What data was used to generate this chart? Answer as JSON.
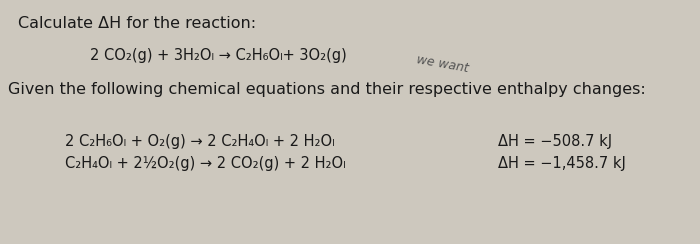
{
  "background_color": "#cdc8be",
  "text_color": "#1a1a1a",
  "title_text": "Calculate ΔH for the reaction:",
  "reaction_line": "2 CO₂(g) + 3H₂Oₗ → C₂H₆Oₗ+ 3O₂(g)",
  "we_want_text": "we want",
  "given_text": "Given the following chemical equations and their respective enthalpy changes:",
  "eq1_text": "2 C₂H₆Oₗ + O₂(g) → 2 C₂H₄Oₗ + 2 H₂Oₗ",
  "dh1_text": "ΔH = −508.7 kJ",
  "eq2_text": "C₂H₄Oₗ + 2½O₂(g) → 2 CO₂(g) + 2 H₂Oₗ",
  "dh2_text": "ΔH = −1,458.7 kJ",
  "title_fontsize": 11.5,
  "reaction_fontsize": 10.5,
  "we_want_fontsize": 9,
  "given_fontsize": 11.5,
  "eq_fontsize": 10.5,
  "dh_fontsize": 10.5
}
